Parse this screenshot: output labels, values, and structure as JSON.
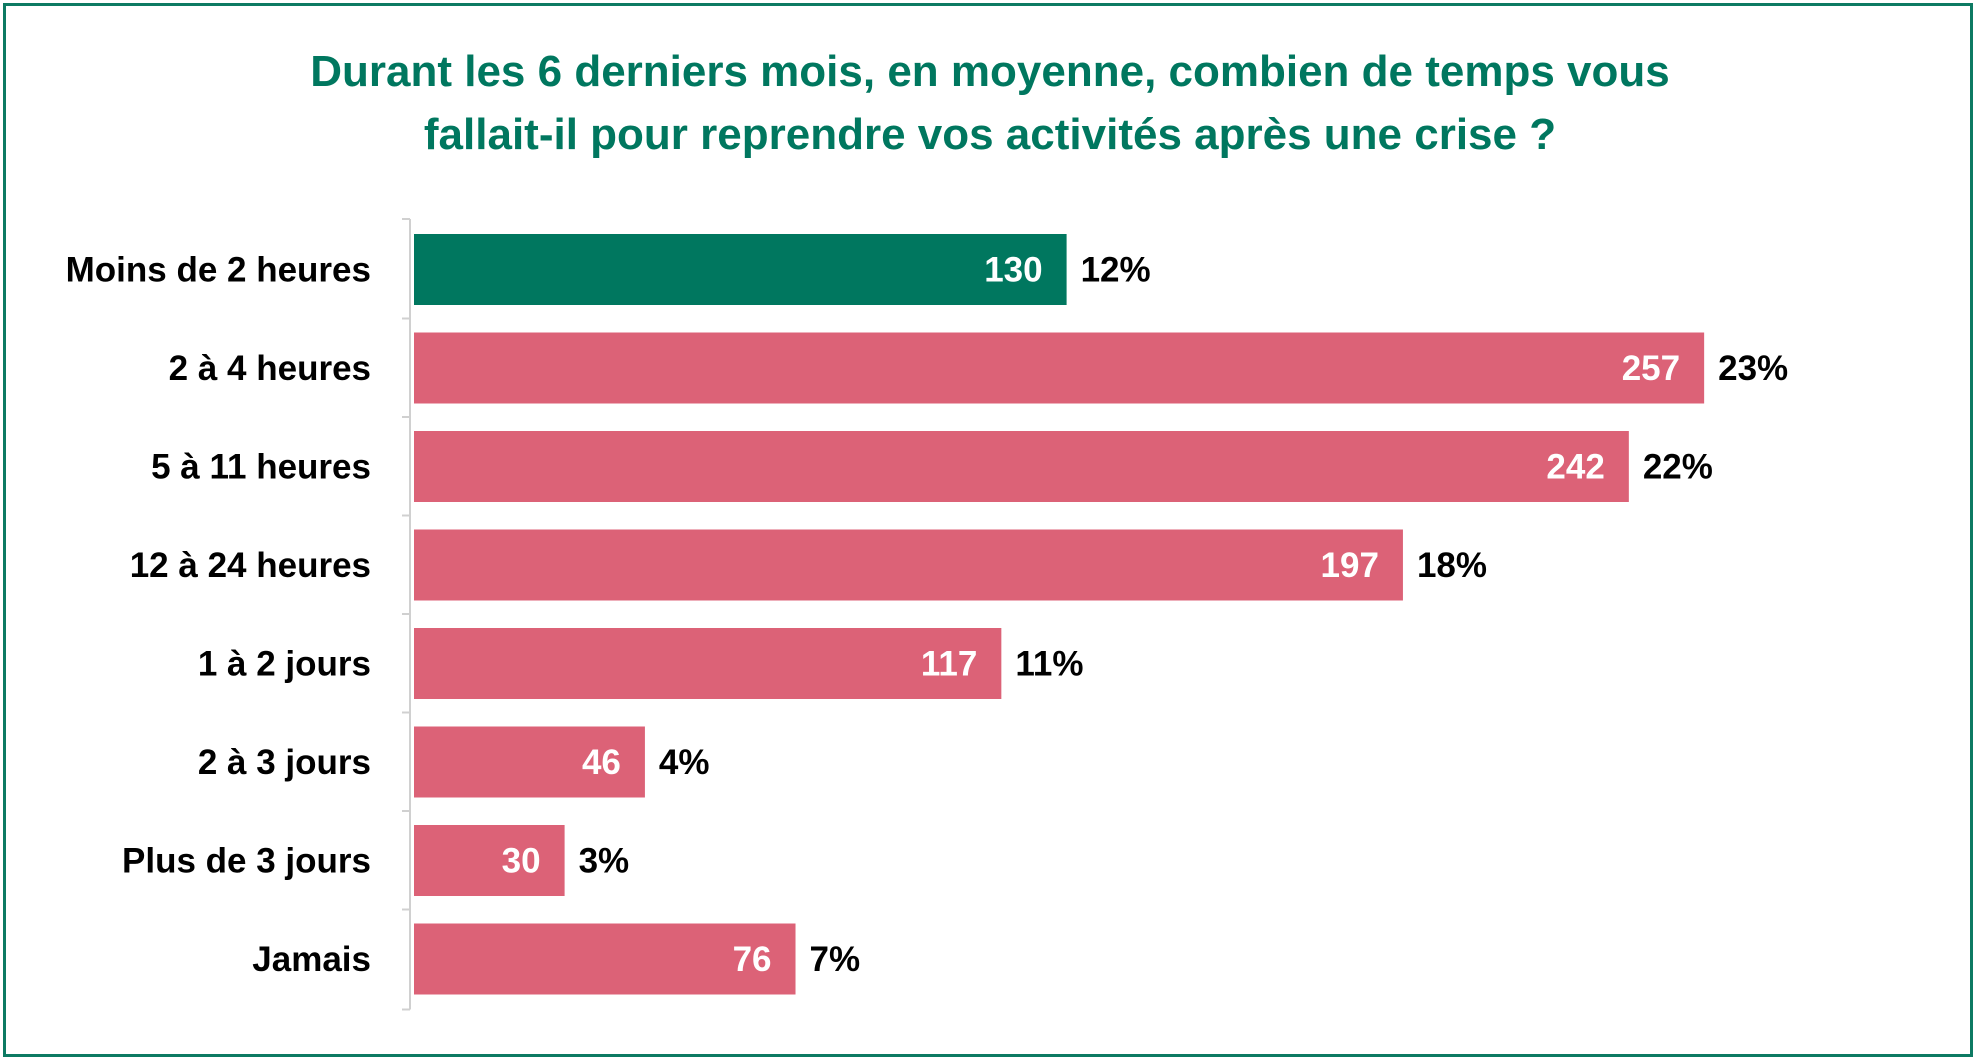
{
  "chart_data": {
    "type": "bar",
    "orientation": "horizontal",
    "title_lines": [
      "Durant les 6 derniers mois, en moyenne, combien de temps vous",
      "fallait-il pour reprendre vos activités après une crise ?"
    ],
    "categories": [
      "Moins de 2 heures",
      "2 à 4 heures",
      "5 à 11 heures",
      "12 à 24 heures",
      "1 à 2 jours",
      "2 à 3 jours",
      "Plus de 3 jours",
      "Jamais"
    ],
    "values": [
      130,
      257,
      242,
      197,
      117,
      46,
      30,
      76
    ],
    "percent_labels": [
      "12%",
      "23%",
      "22%",
      "18%",
      "11%",
      "4%",
      "3%",
      "7%"
    ],
    "bar_colors": [
      "#00775f",
      "#dc6277",
      "#dc6277",
      "#dc6277",
      "#dc6277",
      "#dc6277",
      "#dc6277",
      "#dc6277"
    ],
    "title_color": "#00775f",
    "grid": false,
    "legend": "none"
  }
}
